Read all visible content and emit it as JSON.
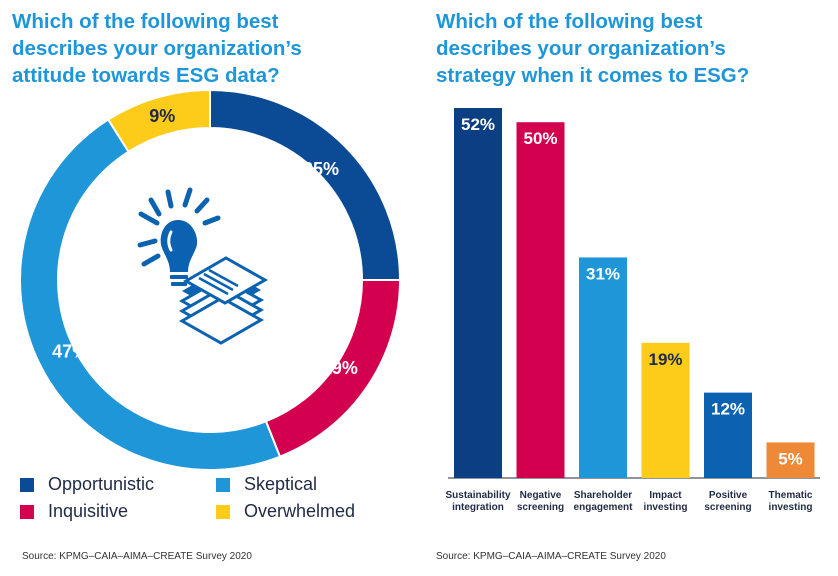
{
  "left_panel": {
    "title_lines": [
      "Which of the following best",
      "describes your organization’s",
      "attitude towards ESG data?"
    ],
    "source": "Source: KPMG–CAIA–AIMA–CREATE Survey 2020"
  },
  "right_panel": {
    "title_lines": [
      "Which of the following best",
      "describes your organization’s",
      "strategy when it comes to ESG?"
    ],
    "source": "Source: KPMG–CAIA–AIMA–CREATE Survey 2020"
  },
  "center_icon": "lightbulb-document-stack-icon",
  "chart_data": [
    {
      "type": "pie",
      "donut": true,
      "title": "",
      "unit": "%",
      "legend_position": "bottom",
      "categories": [
        "Opportunistic",
        "Inquisitive",
        "Skeptical",
        "Overwhelmed"
      ],
      "values": [
        25,
        19,
        47,
        9
      ],
      "labels": [
        "25%",
        "19%",
        "47%",
        "9%"
      ],
      "colors": [
        "#0b4a94",
        "#d2004e",
        "#1e96d8",
        "#fdcb1a"
      ]
    },
    {
      "type": "bar",
      "title": "",
      "unit": "%",
      "categories": [
        [
          "Sustainability",
          "integration"
        ],
        [
          "Negative",
          "screening"
        ],
        [
          "Shareholder",
          "engagement"
        ],
        [
          "Impact",
          "investing"
        ],
        [
          "Positive",
          "screening"
        ],
        [
          "Thematic",
          "investing"
        ]
      ],
      "values": [
        52,
        50,
        31,
        19,
        12,
        5
      ],
      "labels": [
        "52%",
        "50%",
        "31%",
        "19%",
        "12%",
        "5%"
      ],
      "colors": [
        "#0b3e82",
        "#d2004e",
        "#1e96d8",
        "#fdcb1a",
        "#0b62b0",
        "#ee8a37"
      ],
      "label_colors": [
        "#ffffff",
        "#ffffff",
        "#ffffff",
        "#1f2a44",
        "#ffffff",
        "#ffffff"
      ],
      "ylim": [
        0,
        52
      ],
      "grid": false
    }
  ]
}
